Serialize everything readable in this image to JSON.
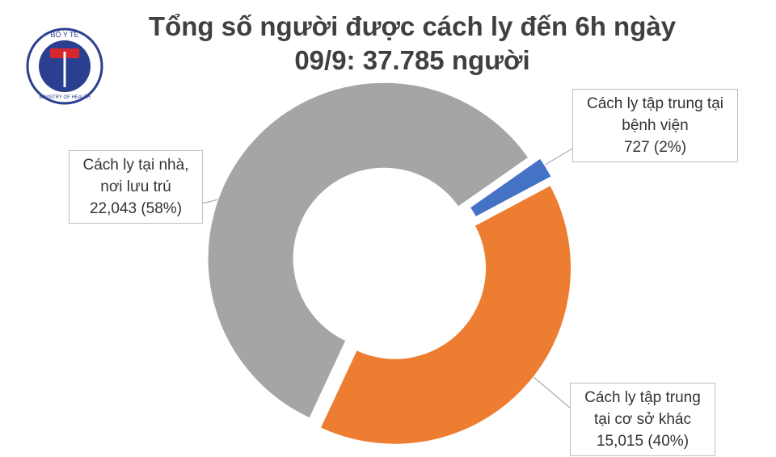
{
  "logo": {
    "top": "BỘ Y TẾ",
    "bottom": "MINISTRY OF HEALTH"
  },
  "chart_data": {
    "type": "donut",
    "title": "Tổng số người được cách ly đến 6h ngày 09/9: 37.785 người",
    "categories": [
      "Cách ly tập trung tại bệnh viện",
      "Cách ly tập trung tại cơ sở khác",
      "Cách ly tại nhà, nơi lưu trú"
    ],
    "values": [
      727,
      15015,
      22043
    ],
    "value_labels": [
      "727 (2%)",
      "15,015 (40%)",
      "22,043 (58%)"
    ],
    "colors": [
      "#4472c4",
      "#ed7d31",
      "#a5a5a5"
    ]
  }
}
